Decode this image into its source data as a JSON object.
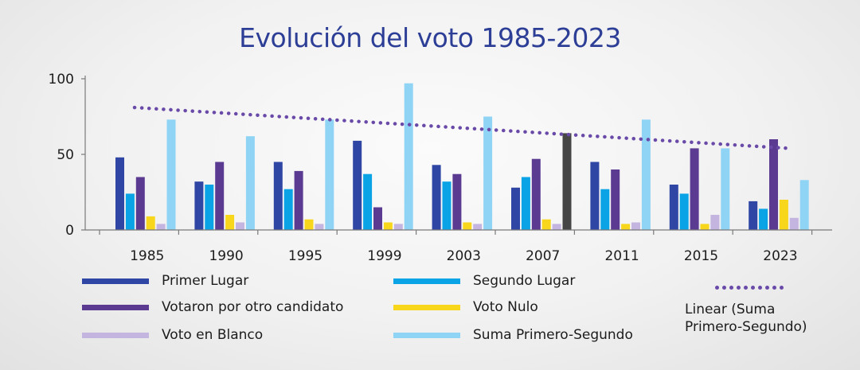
{
  "chart_data": {
    "type": "bar",
    "title": "Evolución del voto 1985-2023",
    "categories": [
      "1985",
      "1990",
      "1995",
      "1999",
      "2003",
      "2007",
      "2011",
      "2015",
      "2023"
    ],
    "ylim": [
      0,
      100
    ],
    "yticks": [
      0,
      50,
      100
    ],
    "grid": false,
    "legend_position": "bottom",
    "series": [
      {
        "name": "Primer Lugar",
        "color": "#2f46a5",
        "values": [
          48,
          32,
          45,
          59,
          43,
          28,
          45,
          30,
          19
        ]
      },
      {
        "name": "Segundo Lugar",
        "color": "#0aa3e6",
        "values": [
          24,
          30,
          27,
          37,
          32,
          35,
          27,
          24,
          14
        ]
      },
      {
        "name": "Votaron por otro candidato",
        "color": "#5b3a92",
        "values": [
          35,
          45,
          39,
          15,
          37,
          47,
          40,
          54,
          60
        ]
      },
      {
        "name": "Voto Nulo",
        "color": "#f7d61c",
        "values": [
          9,
          10,
          7,
          5,
          5,
          7,
          4,
          4,
          20
        ]
      },
      {
        "name": "Voto en Blanco",
        "color": "#c3b4e0",
        "values": [
          4,
          5,
          4,
          4,
          4,
          4,
          5,
          10,
          8
        ]
      },
      {
        "name": "Suma Primero-Segundo",
        "color": "#8fd4f5",
        "values": [
          73,
          62,
          73,
          97,
          75,
          64,
          73,
          54,
          33
        ]
      }
    ],
    "highlight": {
      "category": "2007",
      "series": "Suma Primero-Segundo",
      "color": "#454545"
    },
    "trendline": {
      "name": "Linear (Suma Primero-Segundo)",
      "name_lines": [
        "Linear (Suma",
        "Primero-Segundo)"
      ],
      "color": "#6a4aa8",
      "style": "dotted",
      "start": 81,
      "end": 54
    }
  }
}
